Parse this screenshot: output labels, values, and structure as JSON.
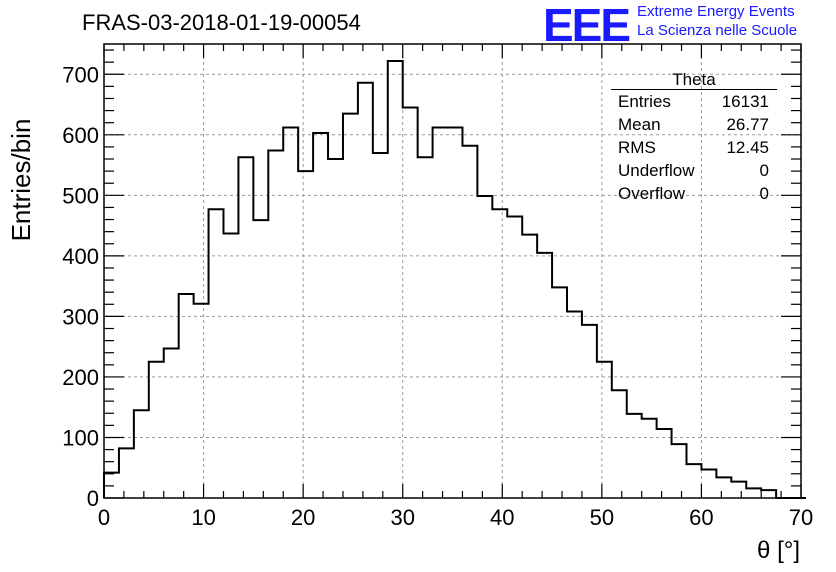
{
  "header": {
    "run_title": "FRAS-03-2018-01-19-00054",
    "logo_text": "EEE",
    "logo_line1": "Extreme Energy Events",
    "logo_line2": "La Scienza nelle Scuole"
  },
  "stats_box": {
    "title": "Theta",
    "rows": [
      {
        "label": "Entries",
        "value": "16131"
      },
      {
        "label": "Mean",
        "value": "26.77"
      },
      {
        "label": "RMS",
        "value": "12.45"
      },
      {
        "label": "Underflow",
        "value": "0"
      },
      {
        "label": "Overflow",
        "value": "0"
      }
    ]
  },
  "chart_data": {
    "type": "histogram",
    "xlabel": "θ [°]",
    "ylabel": "Entries/bin",
    "xlim": [
      0,
      70
    ],
    "ylim": [
      0,
      750
    ],
    "bin_width": 1.5,
    "x_ticks": [
      0,
      10,
      20,
      30,
      40,
      50,
      60,
      70
    ],
    "y_ticks": [
      0,
      100,
      200,
      300,
      400,
      500,
      600,
      700
    ],
    "grid": true,
    "line_color": "#000000",
    "values": [
      42,
      82,
      145,
      225,
      247,
      337,
      321,
      477,
      437,
      563,
      459,
      574,
      612,
      540,
      603,
      560,
      635,
      686,
      570,
      722,
      645,
      563,
      612,
      612,
      582,
      499,
      477,
      465,
      435,
      405,
      348,
      308,
      286,
      225,
      178,
      139,
      131,
      114,
      89,
      56,
      47,
      34,
      27,
      16,
      13,
      0,
      0
    ]
  }
}
